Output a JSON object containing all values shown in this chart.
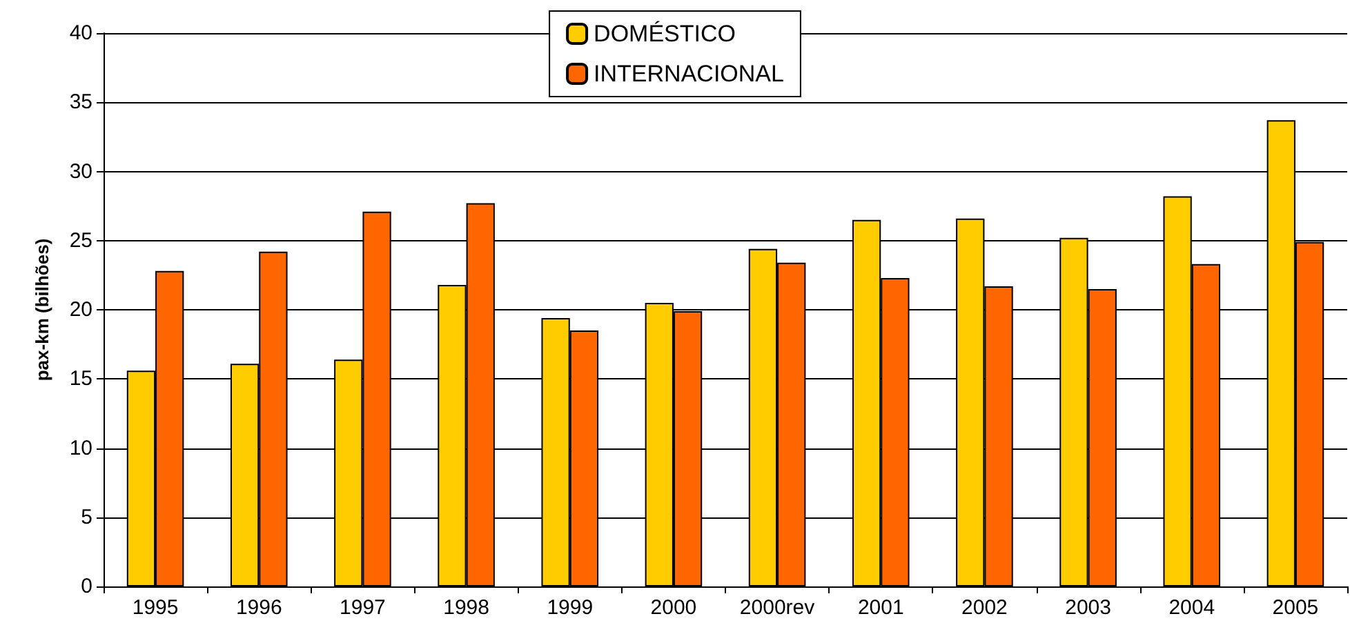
{
  "chart_data": {
    "type": "bar",
    "ylabel": "pax-km (bilhões)",
    "categories": [
      "1995",
      "1996",
      "1997",
      "1998",
      "1999",
      "2000",
      "2000rev",
      "2001",
      "2002",
      "2003",
      "2004",
      "2005"
    ],
    "series": [
      {
        "name": "DOMÉSTICO",
        "color": "#ffcc00",
        "values": [
          15.6,
          16.1,
          16.4,
          21.8,
          19.4,
          20.5,
          24.4,
          26.5,
          26.6,
          25.2,
          28.2,
          33.7
        ]
      },
      {
        "name": "INTERNACIONAL",
        "color": "#ff6600",
        "values": [
          22.8,
          24.2,
          27.1,
          27.7,
          18.5,
          19.9,
          23.4,
          22.3,
          21.7,
          21.5,
          23.3,
          24.9
        ]
      }
    ],
    "ylim": [
      0,
      40
    ],
    "yticks": [
      0,
      5,
      10,
      15,
      20,
      25,
      30,
      35,
      40
    ],
    "grid": "y",
    "legend": "top"
  }
}
